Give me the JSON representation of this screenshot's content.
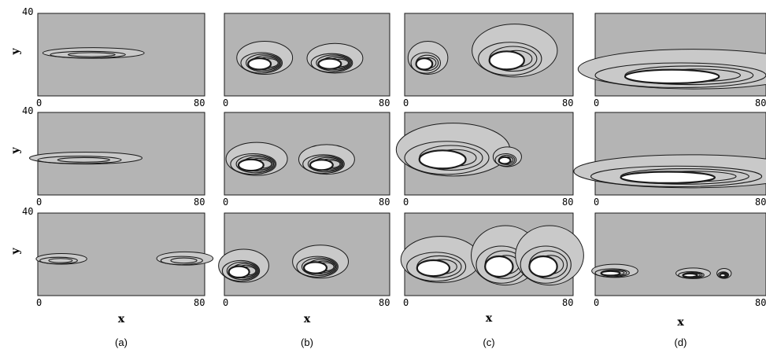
{
  "chart_data": {
    "type": "contour",
    "columns": [
      "(a)",
      "(b)",
      "(c)",
      "(d)"
    ],
    "rows": 3,
    "xlabel": "x",
    "ylabel": "y",
    "xlim": [
      0,
      80
    ],
    "ylim": [
      0,
      40
    ],
    "x_tick_labels": [
      "0",
      "80"
    ],
    "y_tick_labels": [
      "40"
    ],
    "colors": {
      "background": "#b4b4b4",
      "light_band": "#c9c9c9",
      "core": "#ffffff",
      "line": "#1a1a1a"
    },
    "panels": [
      {
        "col": 0,
        "row": 0,
        "blobs": [
          {
            "x": 24,
            "y": 20,
            "rx": 18,
            "ry": 1.6,
            "levels": 2,
            "fill": false
          }
        ]
      },
      {
        "col": 0,
        "row": 1,
        "blobs": [
          {
            "x": 20,
            "y": 17,
            "rx": 20,
            "ry": 1.8,
            "levels": 2,
            "fill": false
          }
        ]
      },
      {
        "col": 0,
        "row": 2,
        "blobs": [
          {
            "x": 10,
            "y": 17,
            "rx": 9,
            "ry": 1.6,
            "levels": 2,
            "fill": false
          },
          {
            "x": 69,
            "y": 17,
            "rx": 10,
            "ry": 2,
            "levels": 2,
            "fill": false
          }
        ]
      },
      {
        "col": 1,
        "row": 0,
        "blobs": [
          {
            "x": 18,
            "y": 16,
            "rx": 10,
            "ry": 5,
            "levels": 5,
            "fill": true
          },
          {
            "x": 52,
            "y": 16,
            "rx": 10,
            "ry": 4.5,
            "levels": 5,
            "fill": true
          }
        ]
      },
      {
        "col": 1,
        "row": 1,
        "blobs": [
          {
            "x": 14,
            "y": 15,
            "rx": 11,
            "ry": 5,
            "levels": 5,
            "fill": true
          },
          {
            "x": 48,
            "y": 15,
            "rx": 10,
            "ry": 4.5,
            "levels": 5,
            "fill": true
          }
        ]
      },
      {
        "col": 1,
        "row": 2,
        "blobs": [
          {
            "x": 8,
            "y": 12,
            "rx": 9,
            "ry": 5,
            "levels": 5,
            "fill": true
          },
          {
            "x": 45,
            "y": 14,
            "rx": 10,
            "ry": 5,
            "levels": 5,
            "fill": true
          }
        ]
      },
      {
        "col": 2,
        "row": 0,
        "blobs": [
          {
            "x": 10,
            "y": 16,
            "rx": 7,
            "ry": 5,
            "levels": 3,
            "fill": true
          },
          {
            "x": 50,
            "y": 18,
            "rx": 15,
            "ry": 8,
            "levels": 3,
            "fill": true
          }
        ]
      },
      {
        "col": 2,
        "row": 1,
        "blobs": [
          {
            "x": 20,
            "y": 18,
            "rx": 20,
            "ry": 8,
            "levels": 3,
            "fill": true
          },
          {
            "x": 48,
            "y": 17,
            "rx": 5,
            "ry": 3,
            "levels": 3,
            "fill": true
          }
        ]
      },
      {
        "col": 2,
        "row": 2,
        "blobs": [
          {
            "x": 15,
            "y": 14,
            "rx": 14,
            "ry": 7,
            "levels": 3,
            "fill": true
          },
          {
            "x": 46,
            "y": 15,
            "rx": 12,
            "ry": 9,
            "levels": 3,
            "fill": true
          },
          {
            "x": 67,
            "y": 15,
            "rx": 12,
            "ry": 9,
            "levels": 3,
            "fill": true
          }
        ]
      },
      {
        "col": 3,
        "row": 0,
        "blobs": [
          {
            "x": 40,
            "y": 10,
            "rx": 40,
            "ry": 6,
            "levels": 3,
            "fill": true
          }
        ]
      },
      {
        "col": 3,
        "row": 1,
        "blobs": [
          {
            "x": 38,
            "y": 9,
            "rx": 40,
            "ry": 5,
            "levels": 3,
            "fill": true
          }
        ]
      },
      {
        "col": 3,
        "row": 2,
        "blobs": [
          {
            "x": 8,
            "y": 11,
            "rx": 8,
            "ry": 2,
            "levels": 3,
            "fill": true
          },
          {
            "x": 45,
            "y": 10,
            "rx": 6,
            "ry": 1.6,
            "levels": 3,
            "fill": true
          },
          {
            "x": 60,
            "y": 10,
            "rx": 2.5,
            "ry": 1.5,
            "levels": 3,
            "fill": true
          }
        ]
      }
    ]
  }
}
